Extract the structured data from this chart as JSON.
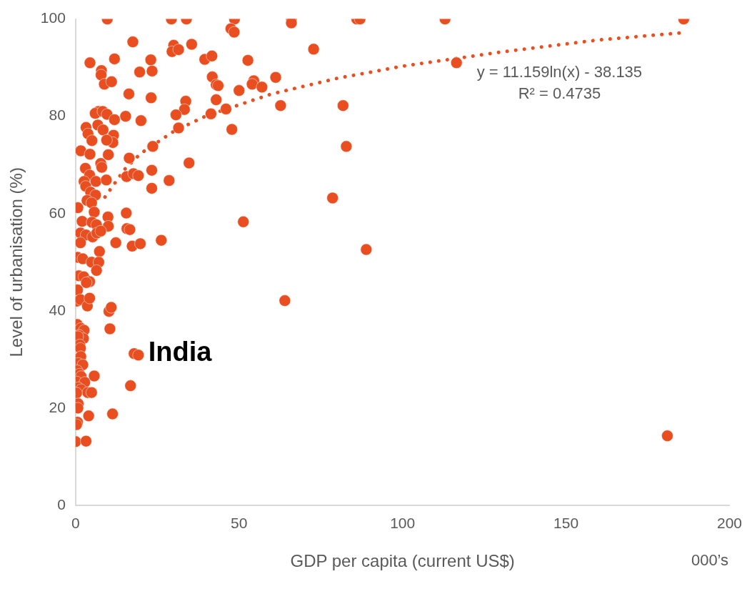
{
  "chart_data": {
    "type": "scatter",
    "xlabel": "GDP per capita (current US$)",
    "ylabel": "Level of urbanisation (%)",
    "xlim": [
      0,
      200
    ],
    "xticks": [
      0,
      50,
      100,
      150,
      200
    ],
    "ylim": [
      0,
      100
    ],
    "yticks": [
      0,
      20,
      40,
      60,
      80,
      100
    ],
    "grid": false,
    "legend": false,
    "marker": "circle",
    "annotations": [
      "y = 11.159ln(x) - 38.135",
      "R² = 0.4735",
      "000’s",
      {
        "text": "India",
        "x": 19.2,
        "y": 30.9
      }
    ],
    "series": [
      {
        "color": "#e84e1f",
        "x": [
          9.7,
          29.3,
          33.9,
          48.6,
          66,
          66,
          86,
          87,
          113,
          186,
          47.5,
          48.5,
          72.8,
          35.5,
          30,
          29.5,
          31.5,
          17.5,
          4.4,
          11.9,
          23,
          39.5,
          41.7,
          52.7,
          116.5,
          7.9,
          7.8,
          8.8,
          11,
          19.6,
          23.4,
          41.8,
          43,
          43.6,
          54.5,
          54,
          57,
          61.2,
          50,
          16.3,
          23.1,
          33.7,
          43,
          33.3,
          30.7,
          41.4,
          46,
          62.7,
          81.8,
          7,
          6,
          8.3,
          9.6,
          15.3,
          11.9,
          20,
          3.2,
          6.8,
          8.4,
          31.5,
          47.8,
          3.8,
          5,
          11.6,
          11.4,
          9.5,
          23.6,
          82.8,
          1.6,
          4.4,
          10,
          16.4,
          34.7,
          7.7,
          3,
          8,
          4.3,
          6.2,
          9.4,
          15.6,
          17.7,
          19.2,
          28.6,
          23.3,
          23.3,
          2.6,
          3.1,
          4.6,
          6.1,
          3.5,
          78.6,
          0.7,
          4.9,
          5.7,
          15.5,
          2,
          5,
          9.9,
          6.4,
          10,
          15.7,
          16.6,
          51.3,
          1.5,
          3.2,
          5.2,
          6.5,
          7.7,
          1.5,
          12.3,
          17.3,
          19.8,
          26.2,
          88.9,
          0.6,
          2.2,
          4.9,
          7.3,
          7.1,
          6.4,
          1,
          2.5,
          4.3,
          3.3,
          0.6,
          0.4,
          1.5,
          3.6,
          4.3,
          10.2,
          10.9,
          10.5,
          64,
          0.5,
          1.6,
          2.6,
          1.1,
          2.4,
          0.7,
          1.3,
          1.5,
          17.9,
          19.2,
          1.6,
          0.8,
          2.2,
          0.5,
          1.2,
          1.7,
          5.7,
          0.3,
          2.8,
          0.8,
          1.7,
          3.7,
          4.9,
          16.8,
          0.3,
          0.8,
          0.7,
          4,
          11.3,
          0.6,
          0.3,
          0,
          3.2,
          181
        ],
        "values": [
          100,
          100,
          100,
          100,
          100,
          99.2,
          100,
          100,
          100,
          100,
          98,
          97.3,
          93.8,
          94.8,
          94.6,
          93.3,
          93.7,
          95.3,
          91,
          91.8,
          91.6,
          91.7,
          92.4,
          91.5,
          91,
          89.4,
          88.5,
          86.6,
          87.1,
          89.1,
          89.3,
          88.1,
          86.5,
          86.3,
          87.3,
          86.6,
          86,
          88,
          85.3,
          84.6,
          83.8,
          83.1,
          83.4,
          81.4,
          80.3,
          80.5,
          81.5,
          82.2,
          82.2,
          81,
          80.6,
          81,
          80.4,
          80,
          79.3,
          79.1,
          77.7,
          78.2,
          77.2,
          77.6,
          77.3,
          76.4,
          75,
          76.1,
          74.6,
          75.1,
          73.8,
          73.8,
          72.9,
          72.2,
          72.1,
          71.4,
          70.4,
          70.3,
          69.3,
          69.5,
          67.9,
          66.6,
          66.9,
          67.6,
          68.2,
          67.8,
          66.8,
          68.9,
          65.2,
          66.6,
          65.6,
          64.4,
          63.8,
          62.7,
          63.2,
          61.2,
          62.2,
          60.3,
          60.1,
          58.4,
          58.2,
          59.3,
          57.7,
          57.4,
          56.9,
          56.7,
          58.3,
          56,
          55.6,
          55.2,
          56,
          56.4,
          54,
          54,
          53.3,
          53.8,
          54.5,
          52.6,
          51,
          50.7,
          50,
          52.2,
          50,
          48.3,
          47.2,
          47,
          46,
          45.8,
          44.3,
          42,
          42.3,
          41,
          42.6,
          39.9,
          40.7,
          36.3,
          42.1,
          37.2,
          36.4,
          36,
          35,
          34.3,
          34.7,
          33,
          32.3,
          31.2,
          30.9,
          30.6,
          29.2,
          28.9,
          27.7,
          27,
          26.5,
          26.6,
          25.4,
          25.3,
          24.2,
          23.8,
          23.2,
          23.2,
          24.6,
          23.1,
          20.9,
          20,
          18.4,
          18.8,
          17.1,
          16.6,
          13.1,
          13.2,
          14.3
        ]
      },
      {
        "type": "line",
        "line_style": "dotted",
        "marker": "none",
        "color": "#e84e1f",
        "x": [
          9,
          15,
          20,
          30,
          40,
          60,
          80,
          100,
          130,
          160,
          186
        ],
        "values": [
          63.4,
          69.1,
          72.4,
          76.9,
          80.1,
          84.6,
          87.8,
          90.3,
          93.2,
          95.7,
          97.2
        ]
      }
    ]
  }
}
